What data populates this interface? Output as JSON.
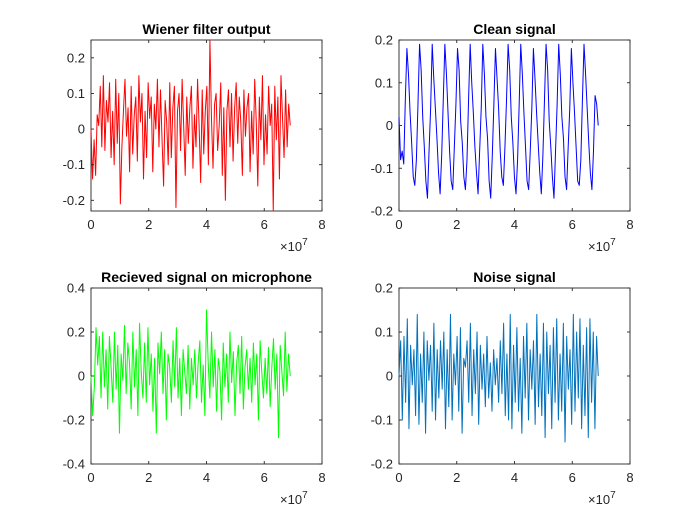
{
  "chart_data": [
    {
      "type": "line",
      "title": "Wiener filter output",
      "xlim": [
        0,
        80000000
      ],
      "ylim": [
        -0.23,
        0.25
      ],
      "xticks": [
        0,
        20000000,
        40000000,
        60000000,
        80000000
      ],
      "xtick_labels": [
        "0",
        "2",
        "4",
        "6",
        "8"
      ],
      "x_multiplier": "×10^7",
      "x_multiplier_base": "×10",
      "x_multiplier_exp": "7",
      "yticks": [
        -0.2,
        -0.1,
        0,
        0.1,
        0.2
      ],
      "ytick_labels": [
        "-0.2",
        "-0.1",
        "0",
        "0.1",
        "0.2"
      ],
      "grid": false,
      "series": [
        {
          "color": "#ff0000",
          "x_start": 0,
          "x_end": 69000000,
          "y": [
            0.0,
            -0.14,
            -0.03,
            -0.13,
            0.04,
            0.01,
            0.12,
            -0.05,
            0.15,
            -0.06,
            0.08,
            0.02,
            0.13,
            -0.08,
            0.05,
            -0.1,
            0.14,
            -0.04,
            0.1,
            -0.21,
            -0.05,
            0.05,
            0.14,
            -0.02,
            0.06,
            -0.12,
            0.12,
            -0.07,
            0.04,
            0.09,
            -0.09,
            0.15,
            0.02,
            0.1,
            -0.14,
            0.05,
            -0.08,
            0.13,
            0.03,
            0.09,
            -0.12,
            0.07,
            0.0,
            0.14,
            -0.05,
            0.11,
            -0.03,
            -0.16,
            0.08,
            0.02,
            -0.1,
            0.13,
            -0.08,
            0.06,
            0.12,
            -0.22,
            0.05,
            0.1,
            -0.06,
            0.14,
            0.01,
            -0.13,
            0.09,
            -0.04,
            0.06,
            0.12,
            -0.11,
            0.04,
            -0.05,
            0.14,
            0.01,
            -0.15,
            0.11,
            -0.07,
            0.05,
            0.12,
            -0.1,
            0.25,
            0.03,
            -0.11,
            0.07,
            0.1,
            -0.06,
            0.01,
            0.13,
            -0.13,
            0.06,
            -0.2,
            0.05,
            0.11,
            -0.05,
            0.1,
            -0.09,
            0.06,
            0.13,
            -0.04,
            0.09,
            0.02,
            -0.13,
            0.11,
            -0.02,
            0.06,
            0.1,
            -0.12,
            0.05,
            -0.07,
            0.14,
            0.02,
            -0.16,
            0.09,
            -0.03,
            0.15,
            -0.1,
            0.04,
            -0.07,
            0.12,
            0.01,
            0.07,
            -0.23,
            0.12,
            -0.03,
            0.09,
            -0.14,
            0.15,
            0.03,
            -0.08,
            0.11,
            -0.05,
            0.07,
            0.01
          ]
        }
      ]
    },
    {
      "type": "line",
      "title": "Clean signal",
      "xlim": [
        0,
        80000000
      ],
      "ylim": [
        -0.2,
        0.2
      ],
      "xticks": [
        0,
        20000000,
        40000000,
        60000000,
        80000000
      ],
      "xtick_labels": [
        "0",
        "2",
        "4",
        "6",
        "8"
      ],
      "x_multiplier": "×10^7",
      "x_multiplier_base": "×10",
      "x_multiplier_exp": "7",
      "yticks": [
        -0.2,
        -0.1,
        0,
        0.1,
        0.2
      ],
      "ytick_labels": [
        "-0.2",
        "-0.1",
        "0",
        "0.1",
        "0.2"
      ],
      "grid": false,
      "series": [
        {
          "color": "#0000ff",
          "x_start": 0,
          "x_end": 69000000,
          "y": [
            0.02,
            -0.08,
            -0.06,
            -0.09,
            0.06,
            0.18,
            0.12,
            0.03,
            -0.04,
            -0.12,
            -0.14,
            -0.08,
            0.05,
            0.19,
            0.13,
            0.02,
            -0.05,
            -0.13,
            -0.17,
            -0.06,
            0.04,
            0.19,
            0.11,
            0.04,
            -0.03,
            -0.11,
            -0.16,
            -0.07,
            0.06,
            0.19,
            0.12,
            0.03,
            -0.06,
            -0.13,
            -0.15,
            -0.05,
            0.05,
            0.18,
            0.13,
            0.01,
            -0.04,
            -0.12,
            -0.15,
            -0.08,
            0.06,
            0.19,
            0.1,
            0.03,
            -0.05,
            -0.11,
            -0.16,
            -0.06,
            0.04,
            0.19,
            0.12,
            0.02,
            -0.03,
            -0.13,
            -0.17,
            -0.07,
            0.05,
            0.18,
            0.11,
            0.04,
            -0.06,
            -0.12,
            -0.14,
            -0.05,
            0.06,
            0.19,
            0.13,
            0.02,
            -0.04,
            -0.12,
            -0.16,
            -0.08,
            0.05,
            0.19,
            0.12,
            0.03,
            -0.05,
            -0.13,
            -0.15,
            -0.06,
            0.04,
            0.18,
            0.11,
            0.03,
            -0.04,
            -0.11,
            -0.16,
            -0.07,
            0.06,
            0.19,
            0.13,
            0.01,
            -0.05,
            -0.12,
            -0.17,
            -0.06,
            0.05,
            0.19,
            0.12,
            0.02,
            -0.03,
            -0.12,
            -0.15,
            -0.05,
            0.04,
            0.18,
            0.1,
            0.03,
            -0.05,
            -0.13,
            -0.14,
            -0.08,
            0.06,
            0.19,
            0.12,
            0.04,
            -0.04,
            -0.11,
            -0.15,
            -0.06,
            0.07,
            0.05,
            0.0
          ]
        }
      ]
    },
    {
      "type": "line",
      "title": "Recieved signal on microphone",
      "xlim": [
        0,
        80000000
      ],
      "ylim": [
        -0.4,
        0.4
      ],
      "xticks": [
        0,
        20000000,
        40000000,
        60000000,
        80000000
      ],
      "xtick_labels": [
        "0",
        "2",
        "4",
        "6",
        "8"
      ],
      "x_multiplier": "×10^7",
      "x_multiplier_base": "×10",
      "x_multiplier_exp": "7",
      "yticks": [
        -0.4,
        -0.2,
        0,
        0.2,
        0.4
      ],
      "ytick_labels": [
        "-0.4",
        "-0.2",
        "0",
        "0.2",
        "0.4"
      ],
      "grid": false,
      "series": [
        {
          "color": "#00ff00",
          "x_start": 0,
          "x_end": 69000000,
          "y": [
            0.0,
            -0.18,
            -0.05,
            0.22,
            0.05,
            0.18,
            -0.1,
            0.2,
            -0.05,
            0.12,
            -0.15,
            0.18,
            0.04,
            -0.12,
            0.2,
            -0.06,
            0.14,
            -0.26,
            0.1,
            -0.02,
            0.23,
            -0.08,
            0.15,
            0.06,
            -0.15,
            0.2,
            -0.05,
            0.12,
            -0.18,
            0.24,
            0.02,
            -0.1,
            0.15,
            -0.12,
            0.22,
            -0.04,
            0.1,
            -0.16,
            0.08,
            -0.26,
            0.15,
            0.01,
            0.2,
            -0.08,
            0.12,
            -0.2,
            0.1,
            0.04,
            -0.12,
            0.16,
            -0.05,
            0.22,
            -0.1,
            0.08,
            -0.18,
            0.12,
            0.02,
            -0.08,
            0.14,
            -0.15,
            0.08,
            -0.04,
            0.12,
            -0.1,
            0.06,
            0.16,
            -0.12,
            0.05,
            -0.18,
            0.3,
            0.06,
            -0.1,
            0.2,
            -0.05,
            0.12,
            -0.16,
            0.08,
            0.02,
            -0.2,
            0.15,
            -0.05,
            0.1,
            -0.12,
            0.2,
            -0.03,
            0.11,
            -0.18,
            0.06,
            0.14,
            -0.08,
            0.18,
            -0.15,
            0.04,
            0.12,
            -0.06,
            0.08,
            -0.12,
            0.15,
            -0.04,
            0.1,
            -0.2,
            0.16,
            0.02,
            -0.1,
            0.08,
            -0.08,
            0.13,
            -0.14,
            0.04,
            0.17,
            -0.06,
            0.1,
            -0.28,
            0.14,
            0.02,
            -0.09,
            0.2,
            -0.07,
            0.1,
            0.0
          ]
        }
      ]
    },
    {
      "type": "line",
      "title": "Noise signal",
      "xlim": [
        0,
        80000000
      ],
      "ylim": [
        -0.2,
        0.2
      ],
      "xticks": [
        0,
        20000000,
        40000000,
        60000000,
        80000000
      ],
      "xtick_labels": [
        "0",
        "2",
        "4",
        "6",
        "8"
      ],
      "x_multiplier": "×10^7",
      "x_multiplier_base": "×10",
      "x_multiplier_exp": "7",
      "yticks": [
        -0.2,
        -0.1,
        0,
        0.1,
        0.2
      ],
      "ytick_labels": [
        "-0.2",
        "-0.1",
        "0",
        "0.1",
        "0.2"
      ],
      "grid": false,
      "series": [
        {
          "color": "#0072bd",
          "x_start": 0,
          "x_end": 69000000,
          "y": [
            0.0,
            0.08,
            -0.1,
            0.09,
            -0.06,
            0.13,
            -0.12,
            0.07,
            -0.02,
            0.06,
            -0.09,
            0.14,
            -0.11,
            0.05,
            -0.06,
            0.1,
            -0.13,
            0.08,
            -0.01,
            0.07,
            -0.08,
            0.12,
            -0.1,
            0.06,
            -0.05,
            0.08,
            -0.03,
            0.1,
            -0.12,
            0.06,
            -0.07,
            0.14,
            -0.1,
            0.05,
            -0.02,
            0.09,
            -0.08,
            0.11,
            -0.13,
            0.04,
            0.02,
            0.08,
            -0.06,
            0.12,
            -0.09,
            0.06,
            -0.04,
            0.1,
            -0.11,
            0.07,
            -0.03,
            0.05,
            -0.07,
            0.09,
            -0.05,
            0.03,
            -0.08,
            0.06,
            -0.02,
            0.04,
            -0.06,
            0.08,
            -0.04,
            0.12,
            -0.09,
            0.05,
            -0.1,
            0.14,
            -0.12,
            0.07,
            -0.06,
            0.11,
            -0.08,
            0.04,
            -0.13,
            0.09,
            -0.05,
            0.12,
            -0.1,
            0.06,
            -0.03,
            0.08,
            -0.11,
            0.14,
            -0.07,
            0.05,
            -0.09,
            0.12,
            -0.14,
            0.1,
            -0.04,
            0.07,
            -0.12,
            0.11,
            -0.06,
            0.13,
            -0.1,
            0.05,
            -0.08,
            0.12,
            -0.15,
            0.09,
            -0.03,
            0.06,
            -0.11,
            0.14,
            -0.08,
            0.1,
            -0.05,
            0.13,
            -0.12,
            0.07,
            -0.09,
            0.11,
            -0.14,
            0.13,
            -0.06,
            0.1,
            -0.12,
            0.09,
            0.0
          ]
        }
      ]
    }
  ]
}
